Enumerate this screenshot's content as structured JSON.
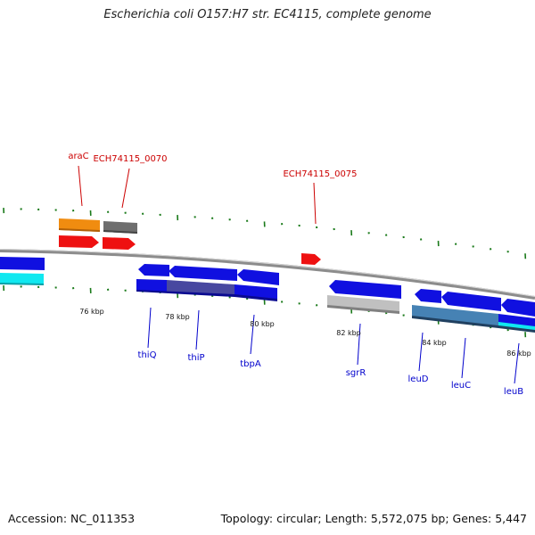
{
  "title": "Escherichia coli O157:H7 str. EC4115, complete genome",
  "footer": {
    "accession": "Accession: NC_011353",
    "topology": "Topology: circular; Length: 5,572,075 bp; Genes: 5,447"
  },
  "colors": {
    "backbone": "#8c8c8c",
    "tick": "#1a7a1a",
    "gene_blue": "#1010e0",
    "gene_red": "#ee1111",
    "gene_orange": "#f08c10",
    "gene_gray": "#6e6e6e",
    "gene_lightgray": "#c0c0c0",
    "gene_cyan": "#10e8f0",
    "gene_steel": "#4682b4",
    "gene_slate": "#4848a0",
    "label_red": "#cc0000",
    "label_blue": "#0000cc"
  },
  "kbp_labels": [
    "76 kbp",
    "78 kbp",
    "80 kbp",
    "82 kbp",
    "84 kbp",
    "86 kbp"
  ],
  "gene_labels": {
    "araC": "araC",
    "ech70": "ECH74115_0070",
    "ech75": "ECH74115_0075",
    "thiQ": "thiQ",
    "thiP": "thiP",
    "tbpA": "tbpA",
    "sgrR": "sgrR",
    "leuD": "leuD",
    "leuC": "leuC",
    "leuB": "leuB"
  }
}
